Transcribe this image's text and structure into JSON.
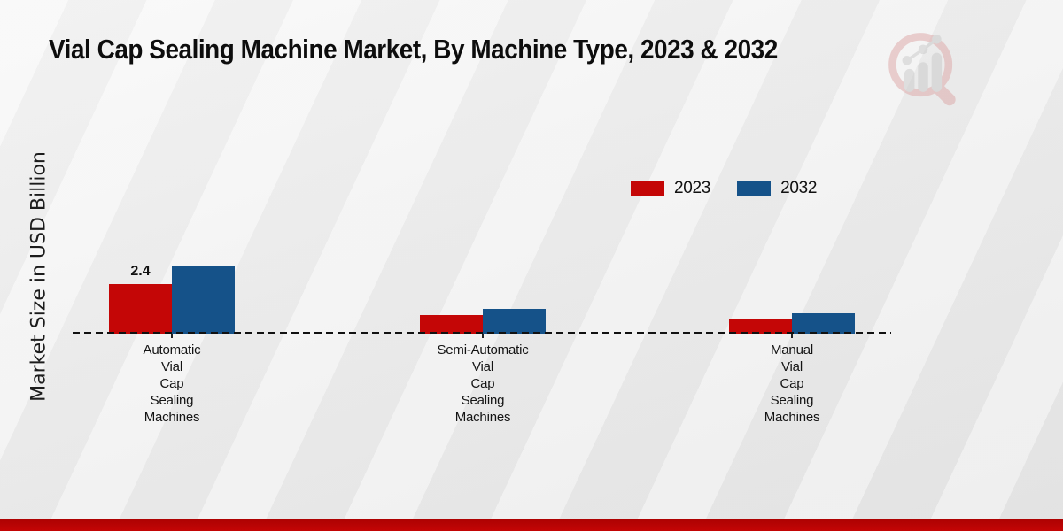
{
  "title_bar": {
    "title": "Vial Cap Sealing Machine Market, By Machine Type, 2023 & 2032"
  },
  "logo": {
    "icon": "magnifier-bar-chart-logo",
    "ring_color": "#dda6a6",
    "bars_color": "#c9c9c9"
  },
  "chart_data": {
    "type": "bar",
    "title": "Vial Cap Sealing Machine Market, By Machine Type, 2023 & 2032",
    "xlabel": "",
    "ylabel": "Market Size in USD Billion",
    "categories": [
      "Automatic Vial Cap Sealing Machines",
      "Semi-Automatic Vial Cap Sealing Machines",
      "Manual Vial Cap Sealing Machines"
    ],
    "category_label_lines": [
      [
        "Automatic",
        "Vial",
        "Cap",
        "Sealing",
        "Machines"
      ],
      [
        "Semi-Automatic",
        "Vial",
        "Cap",
        "Sealing",
        "Machines"
      ],
      [
        "Manual",
        "Vial",
        "Cap",
        "Sealing",
        "Machines"
      ]
    ],
    "series": [
      {
        "name": "2023",
        "color": "#c40606",
        "values": [
          2.4,
          0.9,
          0.7
        ]
      },
      {
        "name": "2032",
        "color": "#155289",
        "values": [
          3.3,
          1.2,
          1.0
        ]
      }
    ],
    "annotations": [
      {
        "text": "2.4",
        "series": "2023",
        "category_index": 0
      }
    ],
    "ylim": [
      0,
      4
    ],
    "grid": false,
    "baseline_style": "dashed",
    "legend_position": "upper-right-inside"
  },
  "footer": {
    "band_color": "#c40505"
  }
}
